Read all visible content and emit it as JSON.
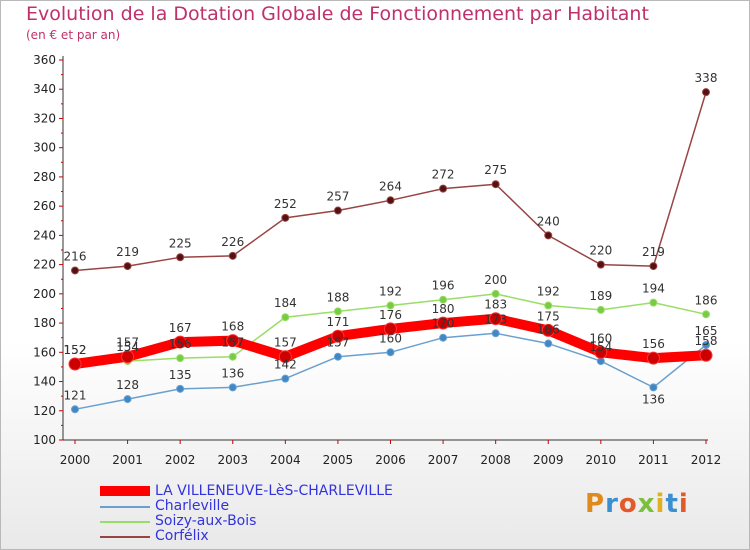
{
  "title": "Evolution de la Dotation Globale de Fonctionnement par Habitant",
  "subtitle": "(en € et par an)",
  "logo_text": "Proxiti",
  "chart_data": {
    "type": "line",
    "title": "Evolution de la Dotation Globale de Fonctionnement par Habitant",
    "subtitle": "(en € et par an)",
    "x": [
      2000,
      2001,
      2002,
      2003,
      2004,
      2005,
      2006,
      2007,
      2008,
      2009,
      2010,
      2011,
      2012
    ],
    "ylim": [
      100,
      360
    ],
    "yticks": [
      100,
      120,
      140,
      160,
      180,
      200,
      220,
      240,
      260,
      280,
      300,
      320,
      340,
      360
    ],
    "grid": false,
    "legend_position": "bottom-left",
    "series": [
      {
        "name": "LA VILLENEUVE-LèS-CHARLEVILLE",
        "color": "#ff0000",
        "marker_color": "#cc0000",
        "width": 10,
        "values": [
          152,
          157,
          167,
          168,
          157,
          171,
          176,
          180,
          183,
          175,
          160,
          156,
          158
        ]
      },
      {
        "name": "Charleville",
        "color": "#6aa0cf",
        "marker_color": "#3f88c5",
        "width": 1.5,
        "values": [
          121,
          128,
          135,
          136,
          142,
          157,
          160,
          170,
          173,
          166,
          154,
          136,
          165
        ]
      },
      {
        "name": "Soizy-aux-Bois",
        "color": "#99dd66",
        "marker_color": "#77cc44",
        "width": 1.5,
        "values": [
          152,
          154,
          156,
          157,
          184,
          188,
          192,
          196,
          200,
          192,
          189,
          194,
          186
        ]
      },
      {
        "name": "Corfélix",
        "color": "#994444",
        "marker_color": "#551111",
        "width": 1.5,
        "values": [
          216,
          219,
          225,
          226,
          252,
          257,
          264,
          272,
          275,
          240,
          220,
          219,
          338
        ]
      }
    ]
  }
}
